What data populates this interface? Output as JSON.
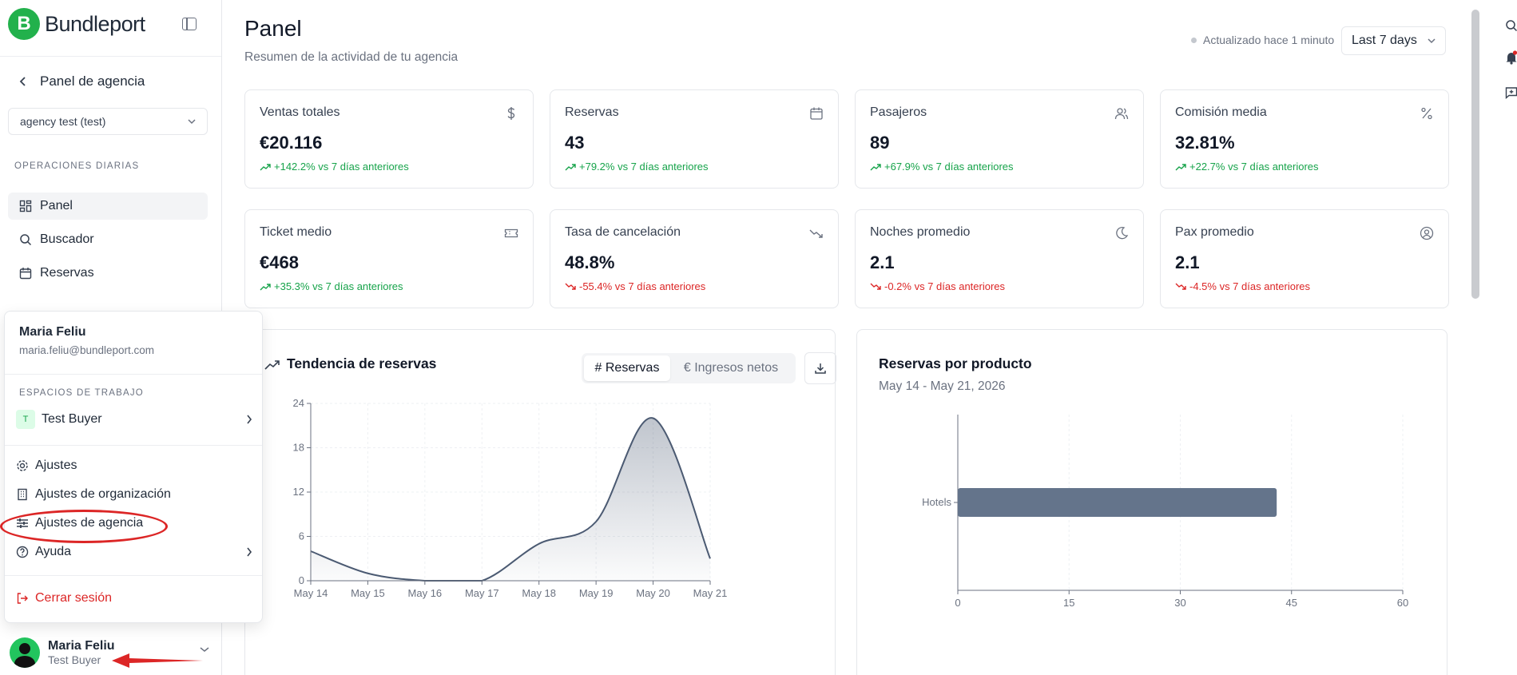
{
  "brand": {
    "name": "Bundleport",
    "logo_letter": "B"
  },
  "sidebar": {
    "back_label": "Panel de agencia",
    "agency_select": "agency test (test)",
    "section_label": "OPERACIONES DIARIAS",
    "items": [
      {
        "label": "Panel",
        "icon": "dashboard-icon",
        "active": true
      },
      {
        "label": "Buscador",
        "icon": "search-icon",
        "active": false
      },
      {
        "label": "Reservas",
        "icon": "calendar-icon",
        "active": false
      }
    ]
  },
  "user_menu": {
    "name": "Maria Feliu",
    "email": "maria.feliu@bundleport.com",
    "workspaces_label": "ESPACIOS DE TRABAJO",
    "workspace": {
      "initial": "T",
      "name": "Test Buyer"
    },
    "items": [
      {
        "label": "Ajustes",
        "icon": "gear-icon"
      },
      {
        "label": "Ajustes de organización",
        "icon": "building-icon"
      },
      {
        "label": "Ajustes de agencia",
        "icon": "sliders-icon"
      },
      {
        "label": "Ayuda",
        "icon": "help-icon"
      }
    ],
    "logout_label": "Cerrar sesión"
  },
  "user_footer": {
    "name": "Maria Feliu",
    "workspace": "Test Buyer"
  },
  "header": {
    "title": "Panel",
    "subtitle": "Resumen de la actividad de tu agencia",
    "updated": "Actualizado hace 1 minuto",
    "range": "Last 7 days"
  },
  "kpis": [
    {
      "title": "Ventas totales",
      "value": "€20.116",
      "delta": "+142.2% vs 7 días anteriores",
      "trend": "up",
      "icon": "dollar-icon"
    },
    {
      "title": "Reservas",
      "value": "43",
      "delta": "+79.2% vs 7 días anteriores",
      "trend": "up",
      "icon": "calendar-icon"
    },
    {
      "title": "Pasajeros",
      "value": "89",
      "delta": "+67.9% vs 7 días anteriores",
      "trend": "up",
      "icon": "users-icon"
    },
    {
      "title": "Comisión media",
      "value": "32.81%",
      "delta": "+22.7% vs 7 días anteriores",
      "trend": "up",
      "icon": "percent-icon"
    },
    {
      "title": "Ticket medio",
      "value": "€468",
      "delta": "+35.3% vs 7 días anteriores",
      "trend": "up",
      "icon": "ticket-icon"
    },
    {
      "title": "Tasa de cancelación",
      "value": "48.8%",
      "delta": "-55.4% vs 7 días anteriores",
      "trend": "down",
      "icon": "trending-down-icon"
    },
    {
      "title": "Noches promedio",
      "value": "2.1",
      "delta": "-0.2% vs 7 días anteriores",
      "trend": "down",
      "icon": "moon-icon"
    },
    {
      "title": "Pax promedio",
      "value": "2.1",
      "delta": "-4.5% vs 7 días anteriores",
      "trend": "down",
      "icon": "user-circle-icon"
    }
  ],
  "trend_card": {
    "title": "Tendencia de reservas",
    "tab_active": "# Reservas",
    "tab_inactive": "€ Ingresos netos"
  },
  "product_card": {
    "title": "Reservas por producto",
    "subtitle": "May 14 - May 21, 2026"
  },
  "chart_data": [
    {
      "type": "area",
      "title": "Tendencia de reservas",
      "x": [
        "May 14",
        "May 15",
        "May 16",
        "May 17",
        "May 18",
        "May 19",
        "May 20",
        "May 21"
      ],
      "series": [
        {
          "values": [
            4,
            1,
            0,
            0,
            5,
            8,
            22,
            3
          ]
        }
      ],
      "ylim": [
        0,
        24
      ],
      "yticks": [
        0,
        6,
        12,
        18,
        24
      ],
      "grid": true,
      "color": "#4b5a72"
    },
    {
      "type": "bar",
      "orientation": "horizontal",
      "title": "Reservas por producto",
      "categories": [
        "Hotels"
      ],
      "values": [
        43
      ],
      "xlim": [
        0,
        60
      ],
      "xticks": [
        0,
        15,
        30,
        45,
        60
      ],
      "grid": true,
      "color": "#64748b"
    }
  ]
}
